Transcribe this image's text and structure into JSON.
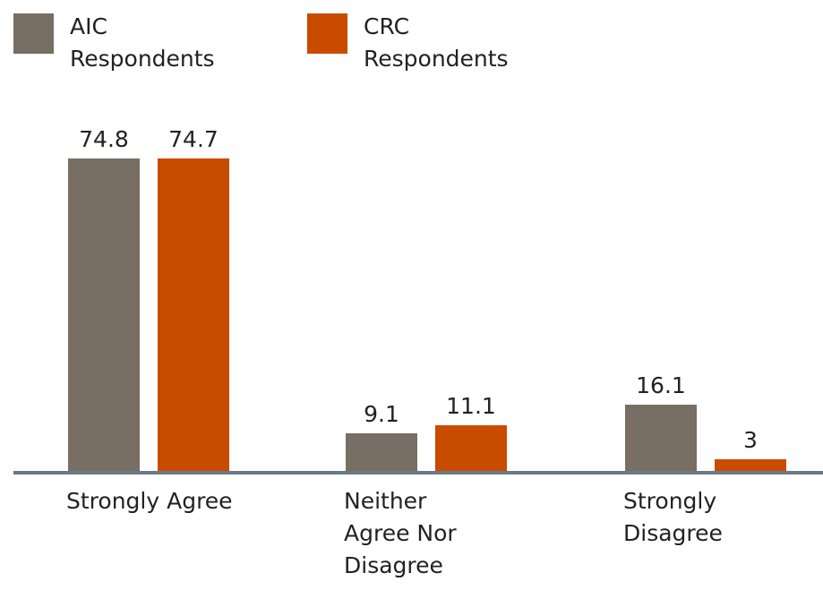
{
  "chart_data": {
    "type": "bar",
    "categories": [
      "Strongly Agree",
      "Neither Agree Nor Disagree",
      "Strongly Disagree"
    ],
    "series": [
      {
        "name": "AIC Respondents",
        "color": "#786e64",
        "values": [
          74.8,
          9.1,
          16.1
        ]
      },
      {
        "name": "CRC Respondents",
        "color": "#c84b00",
        "values": [
          74.7,
          11.1,
          3
        ]
      }
    ],
    "legend": "top-left"
  }
}
